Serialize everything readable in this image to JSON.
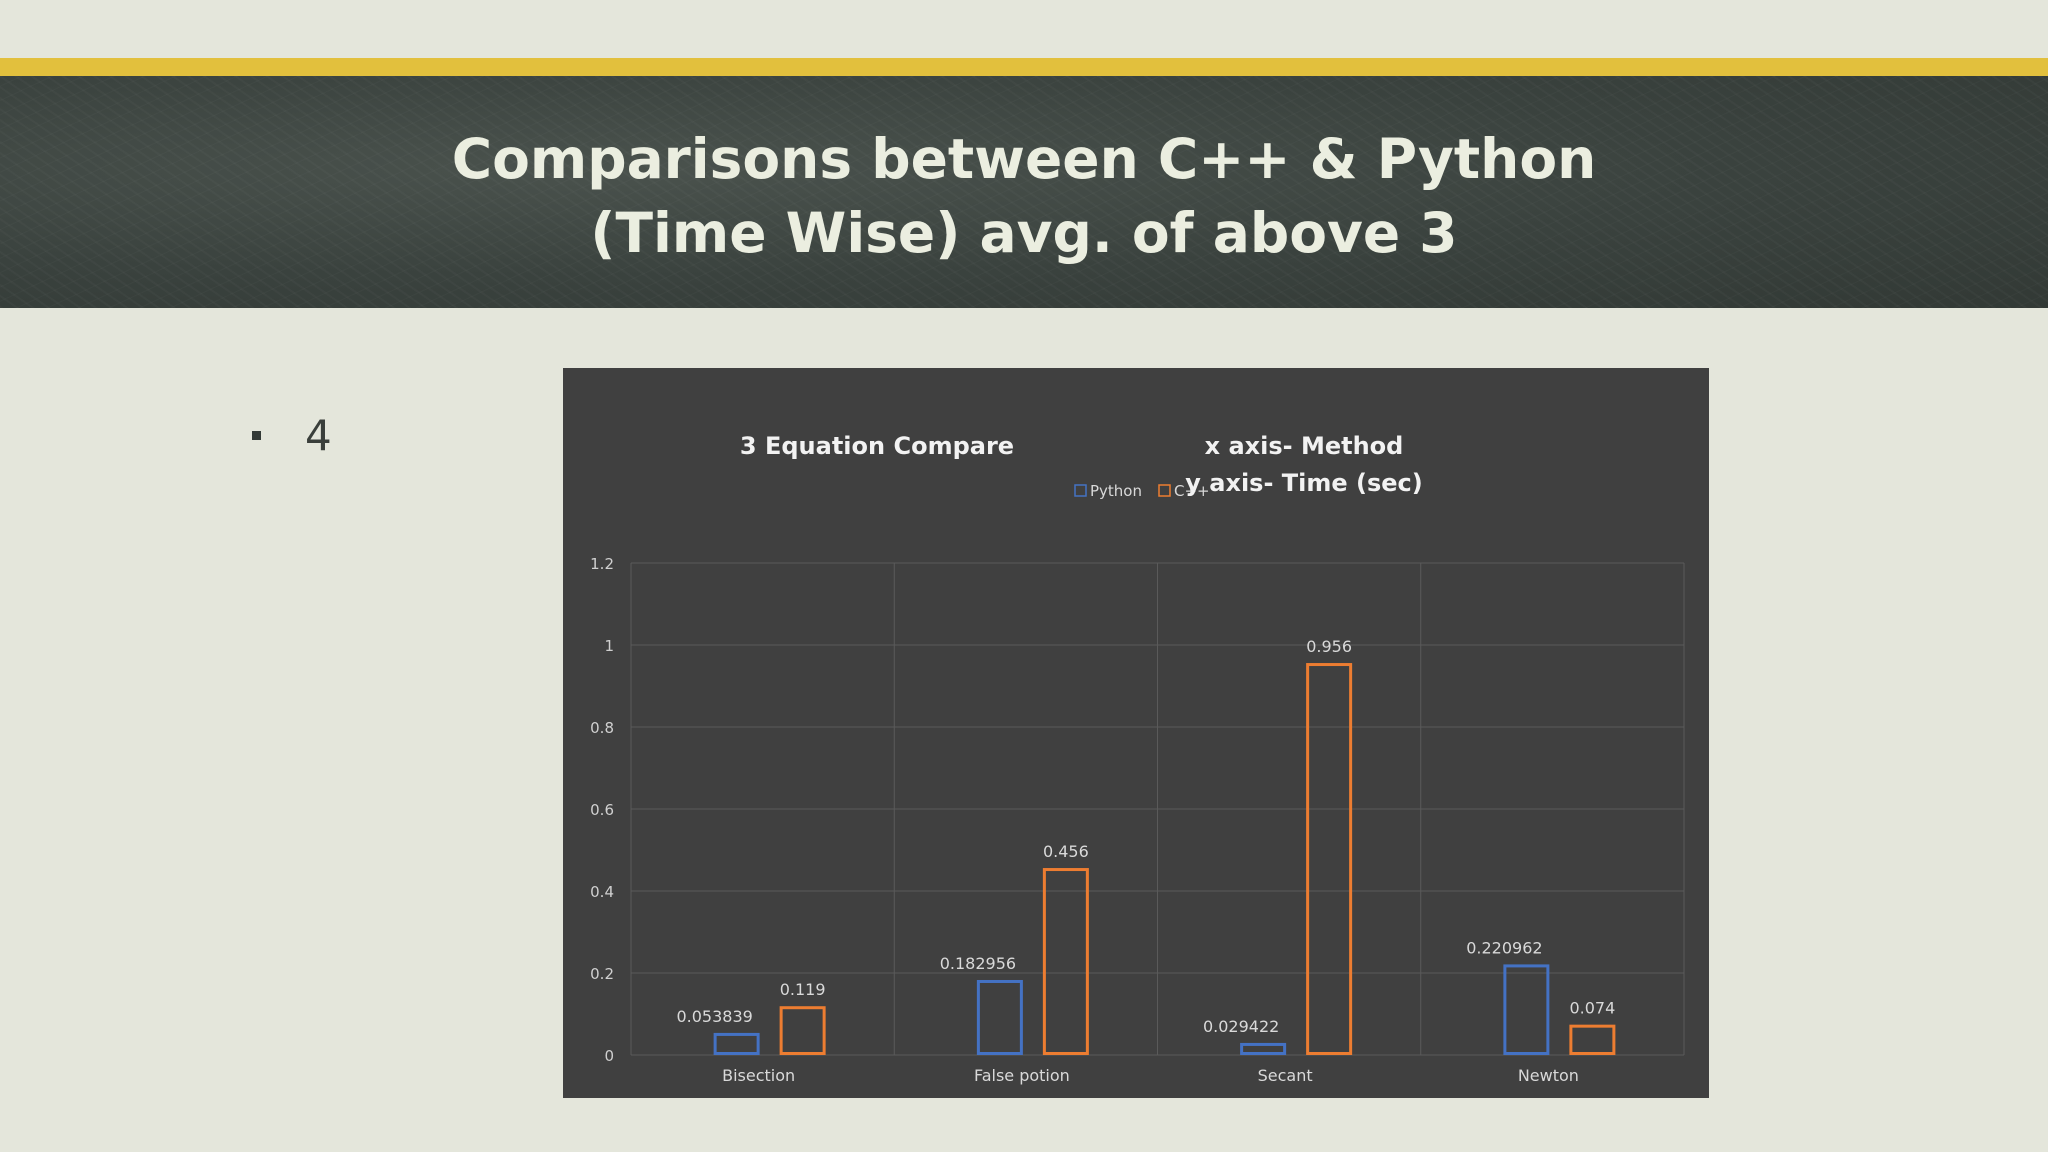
{
  "slide": {
    "title_line1": "Comparisons between C++ & Python",
    "title_line2": "(Time Wise) avg. of above 3",
    "bullet_text": "4"
  },
  "colors": {
    "background": "#e4e6db",
    "accent_stripe": "#e2c03d",
    "header_bg": "#3a423e",
    "chart_bg": "#404040",
    "python": "#4472c4",
    "cpp": "#ed7d31"
  },
  "chart_data": {
    "type": "bar",
    "title": "3 Equation Compare",
    "annotation_line1": "x axis- Method",
    "annotation_line2": "y axis- Time (sec)",
    "categories": [
      "Bisection",
      "False potion",
      "Secant",
      "Newton"
    ],
    "series": [
      {
        "name": "Python",
        "values": [
          0.053839,
          0.182956,
          0.029422,
          0.220962
        ],
        "labels": [
          "0.053839",
          "0.182956",
          "0.029422",
          "0.220962"
        ]
      },
      {
        "name": "C++",
        "values": [
          0.119,
          0.456,
          0.956,
          0.074
        ],
        "labels": [
          "0.119",
          "0.456",
          "0.956",
          "0.074"
        ]
      }
    ],
    "ylim": [
      0,
      1.2
    ],
    "yticks": [
      "0",
      "0.2",
      "0.4",
      "0.6",
      "0.8",
      "1",
      "1.2"
    ],
    "grid": true,
    "legend_position": "top-center",
    "bar_style": "outlined"
  }
}
